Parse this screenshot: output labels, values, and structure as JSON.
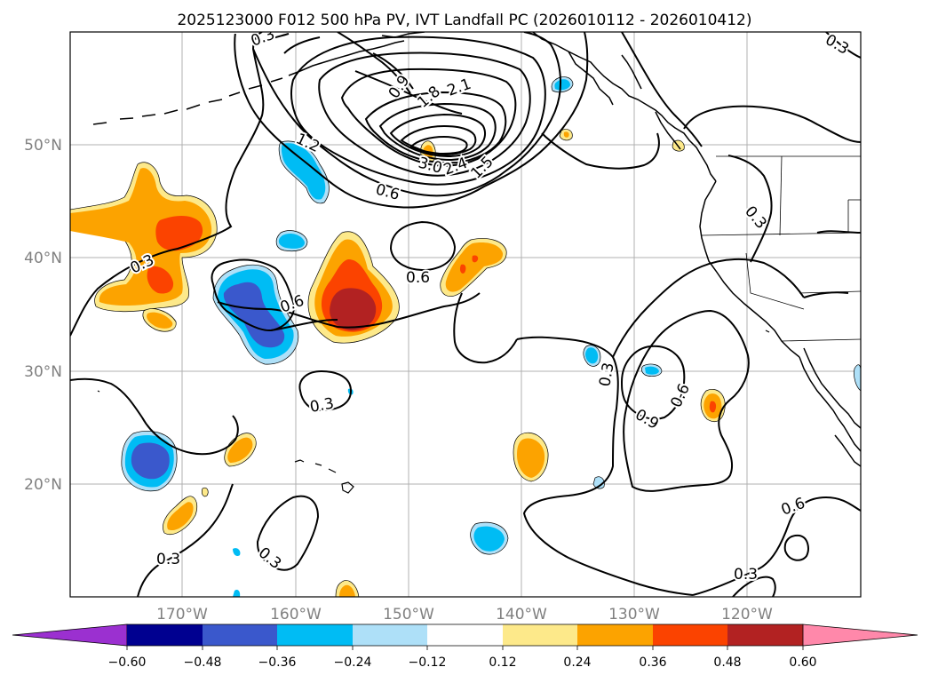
{
  "title": "2025123000 F012 500 hPa PV, IVT Landfall PC (2026010112 - 2026010412)",
  "lon_labels": [
    "170°W",
    "160°W",
    "150°W",
    "140°W",
    "130°W",
    "120°W"
  ],
  "lat_labels": [
    "50°N",
    "40°N",
    "30°N",
    "20°N"
  ],
  "grid_label_color": "#808080",
  "contour_labels": [
    "0.3",
    "0.9",
    "1.8",
    "2.1",
    "1.2",
    "3.0",
    "2.4",
    "1.5",
    "0.6",
    "0.3",
    "0.6",
    "0.6",
    "0.6",
    "0.3",
    "0.3",
    "0.9",
    "0.6",
    "0.3",
    "0.3",
    "0.3",
    "0.3",
    "0.3",
    "0.3"
  ],
  "colorbar": {
    "ticks": [
      "−0.60",
      "−0.48",
      "−0.36",
      "−0.24",
      "−0.12",
      "0.12",
      "0.24",
      "0.36",
      "0.48",
      "0.60"
    ],
    "colors": {
      "under": "#9b30d0",
      "bins": [
        "#000090",
        "#3a58cc",
        "#00bcf4",
        "#aee0f8",
        "#ffffff",
        "#fde98a",
        "#fca300",
        "#fb4300",
        "#b22222"
      ],
      "over": "#ff88aa"
    }
  },
  "fill_colors": {
    "neg1": "#aee0f8",
    "neg2": "#00bcf4",
    "neg3": "#3a58cc",
    "pos1": "#fde98a",
    "pos2": "#fca300",
    "pos3": "#fb4300",
    "pos4": "#b22222"
  }
}
